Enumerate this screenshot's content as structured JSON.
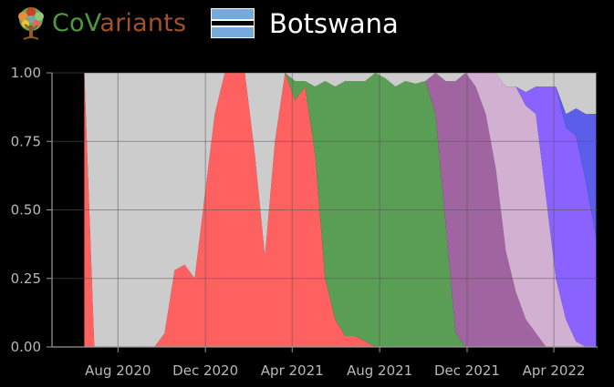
{
  "header": {
    "brand_part1": "Co",
    "brand_part2": "V",
    "brand_part3": "ariants",
    "country": "Botswana",
    "logo_icon": "tree-icon",
    "flag_icon": "botswana-flag-icon",
    "brand_colors": {
      "green": "#4e9a3c",
      "brown": "#a0522d"
    }
  },
  "chart_data": {
    "type": "area",
    "stacked": true,
    "x_unit": "date",
    "x": [
      "2020-06-15",
      "2020-06-29",
      "2020-07-13",
      "2020-07-27",
      "2020-08-10",
      "2020-08-24",
      "2020-09-07",
      "2020-09-21",
      "2020-10-05",
      "2020-10-19",
      "2020-11-02",
      "2020-11-16",
      "2020-11-30",
      "2020-12-14",
      "2020-12-28",
      "2021-01-11",
      "2021-01-25",
      "2021-02-08",
      "2021-02-22",
      "2021-03-08",
      "2021-03-22",
      "2021-04-05",
      "2021-04-19",
      "2021-05-03",
      "2021-05-17",
      "2021-05-31",
      "2021-06-14",
      "2021-06-28",
      "2021-07-12",
      "2021-07-26",
      "2021-08-09",
      "2021-08-23",
      "2021-09-06",
      "2021-09-20",
      "2021-10-04",
      "2021-10-18",
      "2021-11-01",
      "2021-11-15",
      "2021-11-29",
      "2021-12-13",
      "2021-12-27",
      "2022-01-10",
      "2022-01-24",
      "2022-02-07",
      "2022-02-21",
      "2022-03-07",
      "2022-03-21",
      "2022-04-04",
      "2022-04-18",
      "2022-05-02",
      "2022-05-16",
      "2022-05-30"
    ],
    "series": [
      {
        "color": "#ff6060",
        "values": [
          1,
          0,
          0,
          0,
          0,
          0,
          0,
          0,
          0.05,
          0.28,
          0.3,
          0.25,
          0.55,
          0.85,
          1,
          1,
          1,
          0.7,
          0.33,
          0.75,
          1,
          0.9,
          0.95,
          0.7,
          0.25,
          0.1,
          0.04,
          0.04,
          0.02,
          0,
          0,
          0,
          0,
          0,
          0,
          0,
          0,
          0,
          0,
          0,
          0,
          0,
          0,
          0,
          0,
          0,
          0,
          0,
          0,
          0,
          0,
          0
        ]
      },
      {
        "color": "#5a9e56",
        "values": [
          0,
          0,
          0,
          0,
          0,
          0,
          0,
          0,
          0,
          0,
          0,
          0,
          0,
          0,
          0,
          0,
          0,
          0,
          0,
          0,
          0,
          0.07,
          0.02,
          0.25,
          0.72,
          0.85,
          0.93,
          0.93,
          0.95,
          1,
          0.98,
          0.95,
          0.97,
          0.96,
          0.97,
          0.85,
          0.45,
          0.05,
          0,
          0,
          0,
          0,
          0,
          0,
          0,
          0,
          0,
          0,
          0,
          0,
          0,
          0
        ]
      },
      {
        "color": "#a064a0",
        "values": [
          0,
          0,
          0,
          0,
          0,
          0,
          0,
          0,
          0,
          0,
          0,
          0,
          0,
          0,
          0,
          0,
          0,
          0,
          0,
          0,
          0,
          0,
          0,
          0,
          0,
          0,
          0,
          0,
          0,
          0,
          0,
          0,
          0,
          0,
          0,
          0.15,
          0.52,
          0.92,
          1,
          0.95,
          0.85,
          0.65,
          0.35,
          0.2,
          0.1,
          0.05,
          0,
          0,
          0,
          0,
          0,
          0
        ]
      },
      {
        "color": "#d2b0d2",
        "values": [
          0,
          0,
          0,
          0,
          0,
          0,
          0,
          0,
          0,
          0,
          0,
          0,
          0,
          0,
          0,
          0,
          0,
          0,
          0,
          0,
          0,
          0,
          0,
          0,
          0,
          0,
          0,
          0,
          0,
          0,
          0,
          0,
          0,
          0,
          0,
          0,
          0,
          0,
          0,
          0.05,
          0.15,
          0.35,
          0.6,
          0.75,
          0.78,
          0.8,
          0.55,
          0.25,
          0.1,
          0.02,
          0,
          0
        ]
      },
      {
        "color": "#8a62ff",
        "values": [
          0,
          0,
          0,
          0,
          0,
          0,
          0,
          0,
          0,
          0,
          0,
          0,
          0,
          0,
          0,
          0,
          0,
          0,
          0,
          0,
          0,
          0,
          0,
          0,
          0,
          0,
          0,
          0,
          0,
          0,
          0,
          0,
          0,
          0,
          0,
          0,
          0,
          0,
          0,
          0,
          0,
          0,
          0,
          0,
          0.05,
          0.1,
          0.4,
          0.7,
          0.7,
          0.75,
          0.6,
          0.4
        ]
      },
      {
        "color": "#5a5ee8",
        "values": [
          0,
          0,
          0,
          0,
          0,
          0,
          0,
          0,
          0,
          0,
          0,
          0,
          0,
          0,
          0,
          0,
          0,
          0,
          0,
          0,
          0,
          0,
          0,
          0,
          0,
          0,
          0,
          0,
          0,
          0,
          0,
          0,
          0,
          0,
          0,
          0,
          0,
          0,
          0,
          0,
          0,
          0,
          0,
          0,
          0,
          0,
          0,
          0,
          0.05,
          0.1,
          0.25,
          0.45
        ]
      },
      {
        "color": "#cccccc",
        "values": [
          0,
          1,
          1,
          1,
          1,
          1,
          1,
          1,
          0.95,
          0.72,
          0.7,
          0.75,
          0.45,
          0.15,
          0,
          0,
          0,
          0.3,
          0.67,
          0.25,
          0,
          0.03,
          0.03,
          0.05,
          0.03,
          0.05,
          0.03,
          0.03,
          0.03,
          0,
          0.02,
          0.05,
          0.03,
          0.04,
          0.03,
          0,
          0.03,
          0.03,
          0,
          0,
          0,
          0,
          0.05,
          0.05,
          0.07,
          0.05,
          0.05,
          0.05,
          0.15,
          0.13,
          0.15,
          0.15
        ]
      }
    ],
    "yticks": [
      "0.00",
      "0.25",
      "0.50",
      "0.75",
      "1.00"
    ],
    "ylim": [
      0,
      1
    ],
    "xticks": [
      {
        "date": "2020-08-01",
        "label": "Aug 2020"
      },
      {
        "date": "2020-12-01",
        "label": "Dec 2020"
      },
      {
        "date": "2021-04-01",
        "label": "Apr 2021"
      },
      {
        "date": "2021-08-01",
        "label": "Aug 2021"
      },
      {
        "date": "2021-12-01",
        "label": "Dec 2021"
      },
      {
        "date": "2022-04-01",
        "label": "Apr 2022"
      }
    ],
    "xlim": [
      "2020-05-01",
      "2022-06-01"
    ],
    "grid": true,
    "legend": "none"
  }
}
